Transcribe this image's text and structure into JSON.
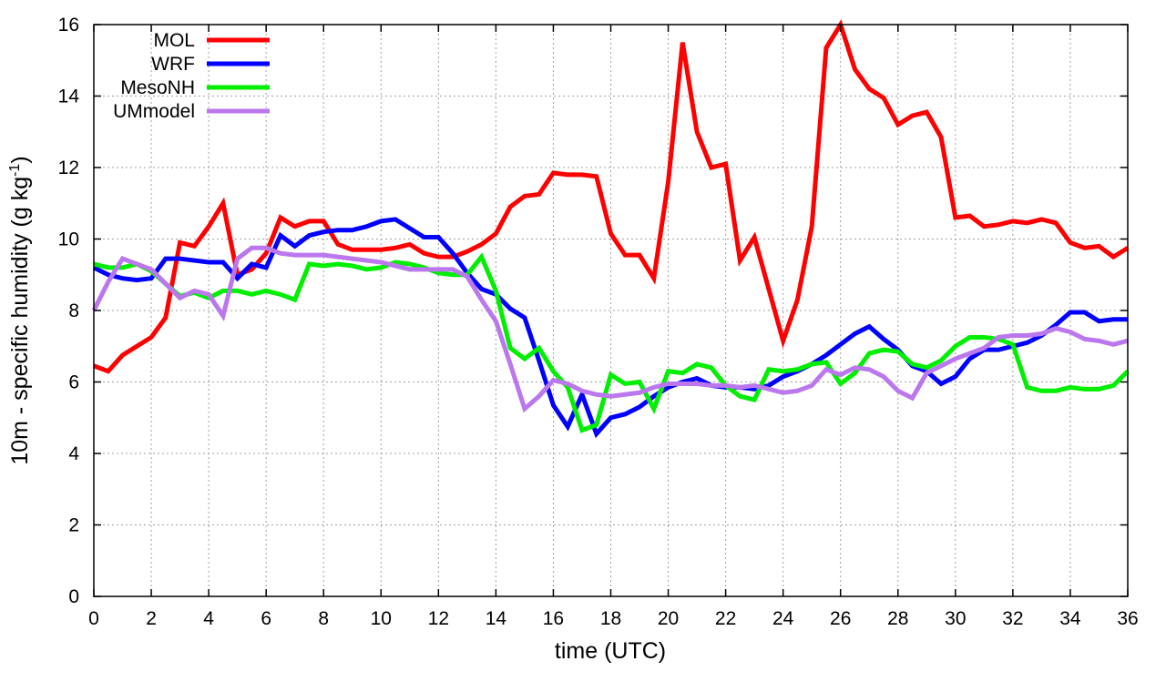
{
  "chart_data": {
    "type": "line",
    "title": "",
    "xlabel": "time (UTC)",
    "ylabel_main": "10m - specific humidity (g kg",
    "ylabel_sup": "-1",
    "ylabel_close": ")",
    "xlim": [
      0,
      36
    ],
    "ylim": [
      0,
      16
    ],
    "xticks": [
      "0",
      "2",
      "4",
      "6",
      "8",
      "10",
      "12",
      "14",
      "16",
      "18",
      "20",
      "22",
      "24",
      "26",
      "28",
      "30",
      "32",
      "34",
      "36"
    ],
    "yticks": [
      "0",
      "2",
      "4",
      "6",
      "8",
      "10",
      "12",
      "14",
      "16"
    ],
    "grid": true,
    "legend_position": "top-left",
    "x": [
      0,
      0.5,
      1,
      1.5,
      2,
      2.5,
      3,
      3.5,
      4,
      4.5,
      5,
      5.5,
      6,
      6.5,
      7,
      7.5,
      8,
      8.5,
      9,
      9.5,
      10,
      10.5,
      11,
      11.5,
      12,
      12.5,
      13,
      13.5,
      14,
      14.5,
      15,
      15.5,
      16,
      16.5,
      17,
      17.5,
      18,
      18.5,
      19,
      19.5,
      20,
      20.5,
      21,
      21.5,
      22,
      22.5,
      23,
      23.5,
      24,
      24.5,
      25,
      25.5,
      26,
      26.5,
      27,
      27.5,
      28,
      28.5,
      29,
      29.5,
      30,
      30.5,
      31,
      31.5,
      32,
      32.5,
      33,
      33.5,
      34,
      34.5,
      35,
      35.5,
      36
    ],
    "series": [
      {
        "name": "MOL",
        "color": "#ff0000",
        "values": [
          6.45,
          6.3,
          6.75,
          7.0,
          7.25,
          7.8,
          9.9,
          9.8,
          10.35,
          11.0,
          9.0,
          9.15,
          9.6,
          10.6,
          10.35,
          10.5,
          10.5,
          9.85,
          9.7,
          9.7,
          9.7,
          9.75,
          9.85,
          9.6,
          9.5,
          9.5,
          9.65,
          9.85,
          10.15,
          10.9,
          11.2,
          11.25,
          11.85,
          11.8,
          11.8,
          11.75,
          10.15,
          9.55,
          9.55,
          8.9,
          11.6,
          15.5,
          13.0,
          12.0,
          12.1,
          9.4,
          10.05,
          8.6,
          7.15,
          8.3,
          10.35,
          15.35,
          16.0,
          14.75,
          14.2,
          13.95,
          13.2,
          13.45,
          13.55,
          12.85,
          10.6,
          10.65,
          10.35,
          10.4,
          10.5,
          10.45,
          10.55,
          10.45,
          9.9,
          9.75,
          9.8,
          9.5,
          9.75
        ]
      },
      {
        "name": "WRF",
        "color": "#0000ff",
        "values": [
          9.2,
          9.0,
          8.9,
          8.85,
          8.9,
          9.45,
          9.45,
          9.4,
          9.35,
          9.35,
          8.9,
          9.3,
          9.2,
          10.1,
          9.8,
          10.1,
          10.2,
          10.25,
          10.25,
          10.35,
          10.5,
          10.55,
          10.3,
          10.05,
          10.05,
          9.6,
          9.05,
          8.6,
          8.45,
          8.05,
          7.8,
          6.6,
          5.35,
          4.75,
          5.65,
          4.55,
          5.0,
          5.1,
          5.3,
          5.6,
          5.85,
          6.0,
          6.1,
          5.9,
          5.85,
          5.85,
          5.8,
          5.9,
          6.15,
          6.3,
          6.5,
          6.75,
          7.05,
          7.35,
          7.55,
          7.2,
          6.9,
          6.45,
          6.3,
          5.95,
          6.15,
          6.65,
          6.9,
          6.9,
          7.0,
          7.1,
          7.3,
          7.6,
          7.95,
          7.95,
          7.7,
          7.75,
          7.75
        ]
      },
      {
        "name": "MesoNH",
        "color": "#00ee00",
        "values": [
          9.3,
          9.2,
          9.2,
          9.3,
          9.1,
          8.75,
          8.4,
          8.5,
          8.35,
          8.55,
          8.55,
          8.45,
          8.55,
          8.45,
          8.3,
          9.3,
          9.25,
          9.3,
          9.25,
          9.15,
          9.2,
          9.35,
          9.3,
          9.2,
          9.05,
          9.0,
          9.0,
          9.5,
          8.55,
          6.95,
          6.65,
          6.95,
          6.3,
          5.85,
          4.65,
          4.8,
          6.2,
          5.95,
          6.0,
          5.25,
          6.3,
          6.25,
          6.5,
          6.4,
          5.9,
          5.6,
          5.5,
          6.35,
          6.3,
          6.35,
          6.5,
          6.55,
          5.95,
          6.25,
          6.8,
          6.9,
          6.85,
          6.5,
          6.4,
          6.6,
          7.0,
          7.25,
          7.25,
          7.2,
          7.05,
          5.85,
          5.75,
          5.75,
          5.85,
          5.8,
          5.8,
          5.9,
          6.3
        ]
      },
      {
        "name": "UMmodel",
        "color": "#bb77ee",
        "values": [
          8.0,
          8.8,
          9.45,
          9.3,
          9.15,
          8.75,
          8.35,
          8.55,
          8.45,
          7.85,
          9.45,
          9.75,
          9.75,
          9.6,
          9.55,
          9.55,
          9.55,
          9.5,
          9.45,
          9.4,
          9.35,
          9.25,
          9.15,
          9.15,
          9.15,
          9.15,
          8.95,
          8.3,
          7.7,
          6.5,
          5.25,
          5.6,
          6.05,
          5.95,
          5.75,
          5.65,
          5.6,
          5.65,
          5.7,
          5.85,
          5.95,
          5.95,
          5.95,
          5.9,
          5.9,
          5.85,
          5.9,
          5.8,
          5.7,
          5.75,
          5.9,
          6.35,
          6.2,
          6.4,
          6.35,
          6.15,
          5.75,
          5.55,
          6.25,
          6.45,
          6.65,
          6.8,
          6.95,
          7.25,
          7.3,
          7.3,
          7.35,
          7.5,
          7.4,
          7.2,
          7.15,
          7.05,
          7.15
        ]
      }
    ]
  }
}
